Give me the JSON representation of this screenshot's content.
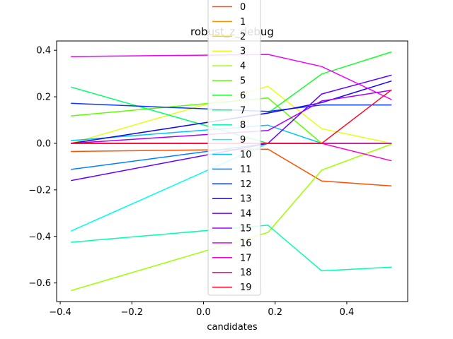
{
  "chart_data": {
    "type": "line",
    "title": "robust_z_debug",
    "xlabel": "candidates",
    "ylabel": "",
    "xlim": [
      -0.41,
      0.57
    ],
    "ylim": [
      -0.68,
      0.44
    ],
    "xticks": [
      -0.4,
      -0.2,
      0.0,
      0.2,
      0.4
    ],
    "xtick_labels": [
      "−0.4",
      "−0.2",
      "0.0",
      "0.2",
      "0.4"
    ],
    "yticks": [
      -0.6,
      -0.4,
      -0.2,
      0.0,
      0.2,
      0.4
    ],
    "ytick_labels": [
      "−0.6",
      "−0.4",
      "−0.2",
      "0.0",
      "0.2",
      "0.4"
    ],
    "grid": false,
    "legend_position": "top-center",
    "x": [
      -0.37,
      0.18,
      0.33,
      0.525
    ],
    "series": [
      {
        "name": "0",
        "color": "#ff4f00",
        "values": [
          -0.035,
          -0.025,
          -0.162,
          -0.183
        ]
      },
      {
        "name": "1",
        "color": "#ff9400",
        "values": [
          0.0,
          0.0,
          0.0,
          0.0
        ]
      },
      {
        "name": "2",
        "color": "#ffd400",
        "values": [
          0.0,
          0.0,
          0.0,
          0.0
        ]
      },
      {
        "name": "3",
        "color": "#e6ff14",
        "values": [
          0.0,
          0.245,
          0.063,
          0.0
        ]
      },
      {
        "name": "4",
        "color": "#a0ff00",
        "values": [
          -0.633,
          -0.383,
          -0.115,
          -0.003
        ]
      },
      {
        "name": "5",
        "color": "#5fff00",
        "values": [
          0.118,
          0.195,
          0.0,
          0.0
        ]
      },
      {
        "name": "6",
        "color": "#17ff2a",
        "values": [
          0.0,
          0.13,
          0.298,
          0.393
        ]
      },
      {
        "name": "7",
        "color": "#00ff6e",
        "values": [
          0.242,
          0.0,
          0.0,
          0.0
        ]
      },
      {
        "name": "8",
        "color": "#00ffb0",
        "values": [
          -0.425,
          -0.352,
          -0.548,
          -0.532
        ]
      },
      {
        "name": "9",
        "color": "#00fff0",
        "values": [
          -0.377,
          0.0,
          0.0,
          0.0
        ]
      },
      {
        "name": "10",
        "color": "#00c4ff",
        "values": [
          0.012,
          0.078,
          0.0,
          0.0
        ]
      },
      {
        "name": "11",
        "color": "#0080ff",
        "values": [
          -0.112,
          0.0,
          0.0,
          0.0
        ]
      },
      {
        "name": "12",
        "color": "#0a37ff",
        "values": [
          0.172,
          0.137,
          0.165,
          0.165
        ]
      },
      {
        "name": "13",
        "color": "#1e00ff",
        "values": [
          0.0,
          0.13,
          0.175,
          0.268
        ]
      },
      {
        "name": "14",
        "color": "#6200ff",
        "values": [
          -0.16,
          0.0,
          0.212,
          0.293
        ]
      },
      {
        "name": "15",
        "color": "#a800ff",
        "values": [
          0.0,
          0.055,
          0.182,
          0.228
        ]
      },
      {
        "name": "16",
        "color": "#ee00ff",
        "values": [
          0.373,
          0.382,
          0.33,
          0.188
        ]
      },
      {
        "name": "17",
        "color": "#ff00c8",
        "values": [
          0.0,
          0.0,
          0.0,
          -0.075
        ]
      },
      {
        "name": "18",
        "color": "#ff0084",
        "values": [
          0.0,
          0.0,
          0.0,
          0.0
        ]
      },
      {
        "name": "19",
        "color": "#ff0a28",
        "values": [
          0.0,
          0.0,
          0.0,
          0.23
        ]
      }
    ]
  }
}
